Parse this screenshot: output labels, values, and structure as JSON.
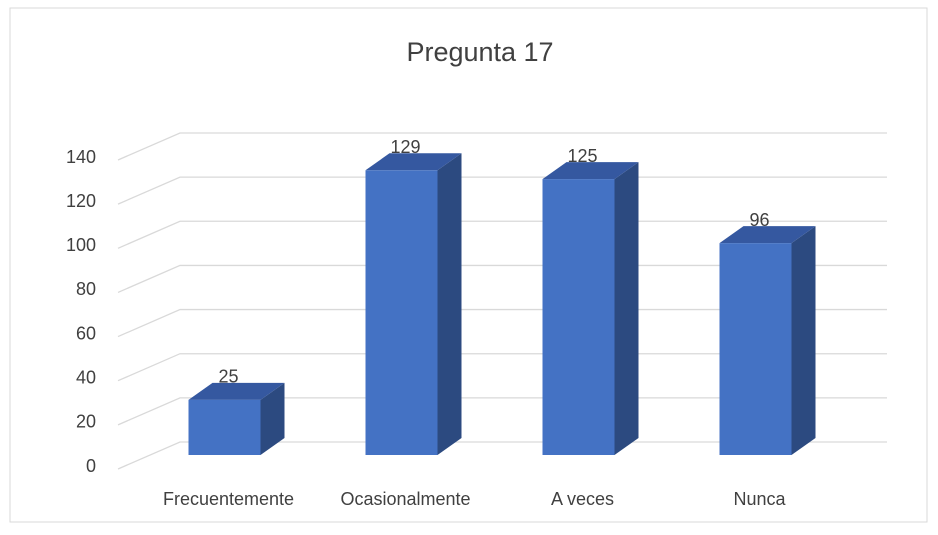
{
  "chart_data": {
    "type": "bar3d",
    "title": "Pregunta 17",
    "categories": [
      "Frecuentemente",
      "Ocasionalmente",
      "A veces",
      "Nunca"
    ],
    "values": [
      25,
      129,
      125,
      96
    ],
    "color": "#4472c4",
    "ylim": [
      0,
      140
    ],
    "yticks": [
      0,
      20,
      40,
      60,
      80,
      100,
      120,
      140
    ],
    "grid": true
  }
}
